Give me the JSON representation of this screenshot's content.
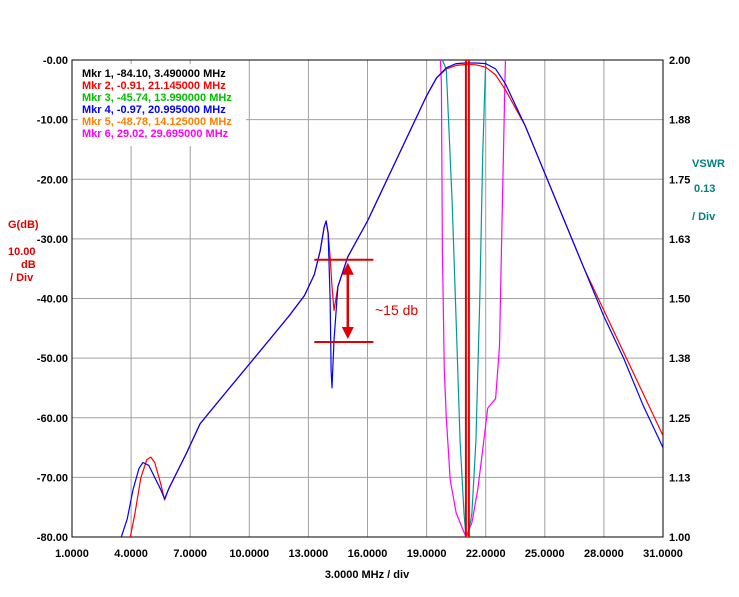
{
  "chart_data": {
    "type": "line",
    "xlabel": "3.0000 MHz / div",
    "x_ticks": [
      "1.0000",
      "4.0000",
      "7.0000",
      "10.0000",
      "13.0000",
      "16.0000",
      "19.0000",
      "22.0000",
      "25.0000",
      "28.0000",
      "31.0000"
    ],
    "xlim": [
      1.0,
      31.0
    ],
    "left_axis": {
      "label": "G(dB)",
      "scale": [
        "10.00",
        "dB",
        "/ Div"
      ],
      "ticks": [
        "-0.00",
        "-10.00",
        "-20.00",
        "-30.00",
        "-40.00",
        "-50.00",
        "-60.00",
        "-70.00",
        "-80.00"
      ],
      "ylim": [
        -80,
        0
      ]
    },
    "right_axis": {
      "label": "VSWR",
      "scale": [
        "0.13",
        "/ Div"
      ],
      "ticks": [
        "2.00",
        "1.88",
        "1.75",
        "1.63",
        "1.50",
        "1.38",
        "1.25",
        "1.13",
        "1.00"
      ],
      "ylim": [
        1.0,
        2.0
      ]
    },
    "grid": true,
    "colors": {
      "grid": "#a0a0a0",
      "red": "#ff0000",
      "blue": "#0000ff",
      "teal": "#009999",
      "magenta": "#ff00ff",
      "marker_line": "#e00000",
      "annotation": "#e00000"
    },
    "markers": [
      {
        "label": "Mkr 1, -84.10, 3.490000 MHz",
        "color": "#000000"
      },
      {
        "label": "Mkr 2, -0.91, 21.145000 MHz",
        "color": "#ff0000"
      },
      {
        "label": "Mkr 3, -45.74, 13.990000 MHz",
        "color": "#00c000"
      },
      {
        "label": "Mkr 4, -0.97, 20.995000 MHz",
        "color": "#0000ff"
      },
      {
        "label": "Mkr 5, -48.78, 14.125000 MHz",
        "color": "#ff8000"
      },
      {
        "label": "Mkr 6, 29.02, 29.695000 MHz",
        "color": "#ff00ff"
      }
    ],
    "marker_lines_x": [
      20.995,
      21.145
    ],
    "annotation": {
      "text": "~15 db",
      "y_top": -33.5,
      "y_bottom": -47.3,
      "x_from": 13.3,
      "x_to": 16.3,
      "x_arrow": 15.0
    },
    "series": [
      {
        "color": "#ff0000",
        "axis": "left",
        "points": [
          [
            3.9,
            -81
          ],
          [
            4.2,
            -76
          ],
          [
            4.5,
            -70
          ],
          [
            4.8,
            -67
          ],
          [
            5.0,
            -66.6
          ],
          [
            5.2,
            -67.5
          ],
          [
            5.5,
            -71
          ],
          [
            5.7,
            -73.8
          ],
          [
            5.9,
            -72
          ],
          [
            6.2,
            -70
          ],
          [
            6.8,
            -66
          ],
          [
            7.5,
            -61
          ],
          [
            8.0,
            -59
          ],
          [
            9.0,
            -55
          ],
          [
            10.0,
            -51
          ],
          [
            11.0,
            -47
          ],
          [
            12.0,
            -43
          ],
          [
            12.8,
            -39.5
          ],
          [
            13.3,
            -36
          ],
          [
            13.6,
            -32
          ],
          [
            13.8,
            -28
          ],
          [
            13.9,
            -27
          ],
          [
            14.0,
            -29
          ],
          [
            14.1,
            -33
          ],
          [
            14.2,
            -38
          ],
          [
            14.3,
            -42
          ],
          [
            14.5,
            -38
          ],
          [
            15.0,
            -33
          ],
          [
            16.0,
            -27
          ],
          [
            17.0,
            -20
          ],
          [
            18.0,
            -13
          ],
          [
            19.0,
            -6
          ],
          [
            19.5,
            -3
          ],
          [
            20.0,
            -1.5
          ],
          [
            20.5,
            -0.9
          ],
          [
            21.0,
            -0.75
          ],
          [
            21.5,
            -0.8
          ],
          [
            22.0,
            -1.2
          ],
          [
            22.5,
            -2.5
          ],
          [
            23.0,
            -5
          ],
          [
            24.0,
            -11
          ],
          [
            25.0,
            -19
          ],
          [
            26.0,
            -27
          ],
          [
            27.0,
            -35
          ],
          [
            28.0,
            -42
          ],
          [
            29.0,
            -49
          ],
          [
            30.0,
            -56
          ],
          [
            31.0,
            -63
          ]
        ]
      },
      {
        "color": "#0000ff",
        "axis": "left",
        "points": [
          [
            3.5,
            -80
          ],
          [
            3.8,
            -77
          ],
          [
            4.1,
            -72
          ],
          [
            4.4,
            -68.5
          ],
          [
            4.6,
            -67.5
          ],
          [
            4.9,
            -68
          ],
          [
            5.2,
            -70
          ],
          [
            5.5,
            -72
          ],
          [
            5.7,
            -73.6
          ],
          [
            5.9,
            -72
          ],
          [
            6.2,
            -70
          ],
          [
            6.8,
            -66
          ],
          [
            7.5,
            -61
          ],
          [
            8.0,
            -59
          ],
          [
            9.0,
            -55
          ],
          [
            10.0,
            -51
          ],
          [
            11.0,
            -47
          ],
          [
            12.0,
            -43
          ],
          [
            12.8,
            -39.5
          ],
          [
            13.3,
            -36
          ],
          [
            13.6,
            -32
          ],
          [
            13.8,
            -28
          ],
          [
            13.9,
            -27
          ],
          [
            14.0,
            -29
          ],
          [
            14.1,
            -40
          ],
          [
            14.15,
            -52
          ],
          [
            14.2,
            -55
          ],
          [
            14.3,
            -47
          ],
          [
            14.5,
            -38
          ],
          [
            15.0,
            -33
          ],
          [
            16.0,
            -27
          ],
          [
            17.0,
            -20
          ],
          [
            18.0,
            -13
          ],
          [
            19.0,
            -6
          ],
          [
            19.5,
            -3
          ],
          [
            20.0,
            -1.3
          ],
          [
            20.5,
            -0.6
          ],
          [
            21.0,
            -0.5
          ],
          [
            21.5,
            -0.5
          ],
          [
            22.0,
            -0.6
          ],
          [
            22.5,
            -1.5
          ],
          [
            23.0,
            -4
          ],
          [
            24.0,
            -11
          ],
          [
            25.0,
            -19
          ],
          [
            26.0,
            -27
          ],
          [
            27.0,
            -35
          ],
          [
            28.0,
            -43
          ],
          [
            29.0,
            -50
          ],
          [
            30.0,
            -58
          ],
          [
            31.0,
            -65
          ]
        ]
      },
      {
        "color": "#009999",
        "axis": "right",
        "points": [
          [
            19.8,
            2.0
          ],
          [
            20.0,
            1.98
          ],
          [
            20.3,
            1.7
          ],
          [
            20.5,
            1.45
          ],
          [
            20.7,
            1.2
          ],
          [
            20.9,
            1.05
          ],
          [
            21.0,
            1.0
          ],
          [
            21.1,
            1.0
          ],
          [
            21.3,
            1.05
          ],
          [
            21.5,
            1.2
          ],
          [
            21.7,
            1.5
          ],
          [
            21.85,
            1.8
          ],
          [
            22.0,
            2.0
          ]
        ]
      },
      {
        "color": "#ff00ff",
        "axis": "right",
        "points": [
          [
            19.7,
            2.0
          ],
          [
            19.75,
            1.95
          ],
          [
            19.8,
            1.6
          ],
          [
            19.9,
            1.35
          ],
          [
            20.0,
            1.25
          ],
          [
            20.2,
            1.12
          ],
          [
            20.5,
            1.05
          ],
          [
            20.8,
            1.02
          ],
          [
            21.0,
            1.0
          ],
          [
            21.3,
            1.03
          ],
          [
            21.6,
            1.1
          ],
          [
            21.9,
            1.2
          ],
          [
            22.1,
            1.27
          ],
          [
            22.3,
            1.28
          ],
          [
            22.5,
            1.29
          ],
          [
            22.7,
            1.4
          ],
          [
            22.85,
            1.7
          ],
          [
            23.0,
            2.0
          ]
        ]
      }
    ]
  }
}
